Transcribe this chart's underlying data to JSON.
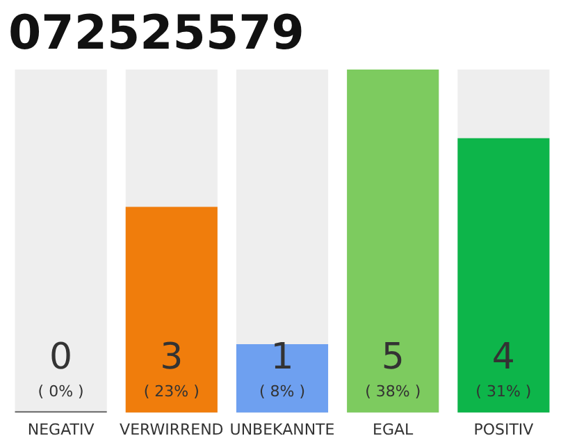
{
  "chart_data": {
    "type": "bar",
    "title": "072525579",
    "categories": [
      "NEGATIV",
      "VERWIRREND",
      "UNBEKANNTE",
      "EGAL",
      "POSITIV"
    ],
    "values": [
      0,
      3,
      1,
      5,
      4
    ],
    "colors": [
      "#555555",
      "#f07d0c",
      "#6ea0f0",
      "#7dcb5f",
      "#0db54a"
    ],
    "data_labels": true,
    "annotations": [
      "( 0% )",
      "( 23% )",
      "( 8% )",
      "( 38% )",
      "( 31% )"
    ],
    "grid": false,
    "legend": false
  }
}
